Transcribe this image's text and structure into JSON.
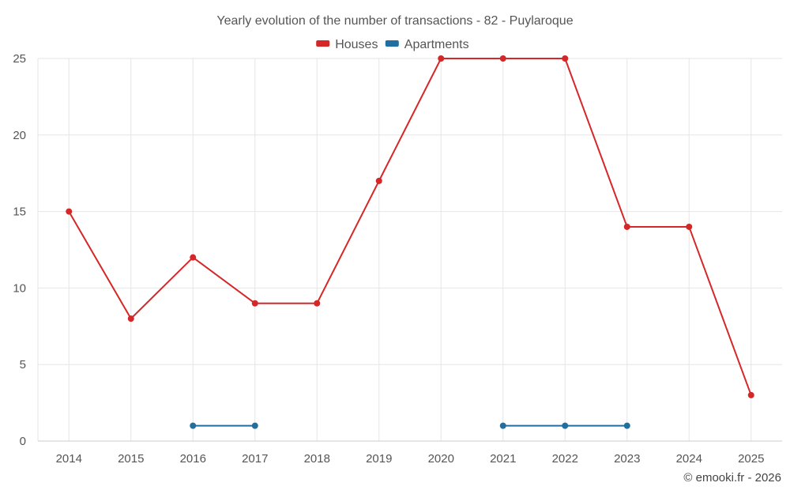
{
  "chart_data": {
    "type": "line",
    "title": "Yearly evolution of the number of transactions - 82 - Puylaroque",
    "xlabel": "",
    "ylabel": "",
    "categories": [
      "2014",
      "2015",
      "2016",
      "2017",
      "2018",
      "2019",
      "2020",
      "2021",
      "2022",
      "2023",
      "2024",
      "2025"
    ],
    "ylim": [
      0,
      25
    ],
    "yticks": [
      0,
      5,
      10,
      15,
      20,
      25
    ],
    "grid": true,
    "legend_position": "top-center",
    "series": [
      {
        "name": "Houses",
        "color": "#d62728",
        "values": [
          15,
          8,
          12,
          9,
          9,
          17,
          25,
          25,
          25,
          14,
          14,
          3
        ]
      },
      {
        "name": "Apartments",
        "color": "#1f6fa0",
        "values": [
          null,
          null,
          1,
          1,
          null,
          null,
          null,
          1,
          1,
          1,
          null,
          null
        ]
      }
    ],
    "credit": "© emooki.fr - 2026"
  }
}
